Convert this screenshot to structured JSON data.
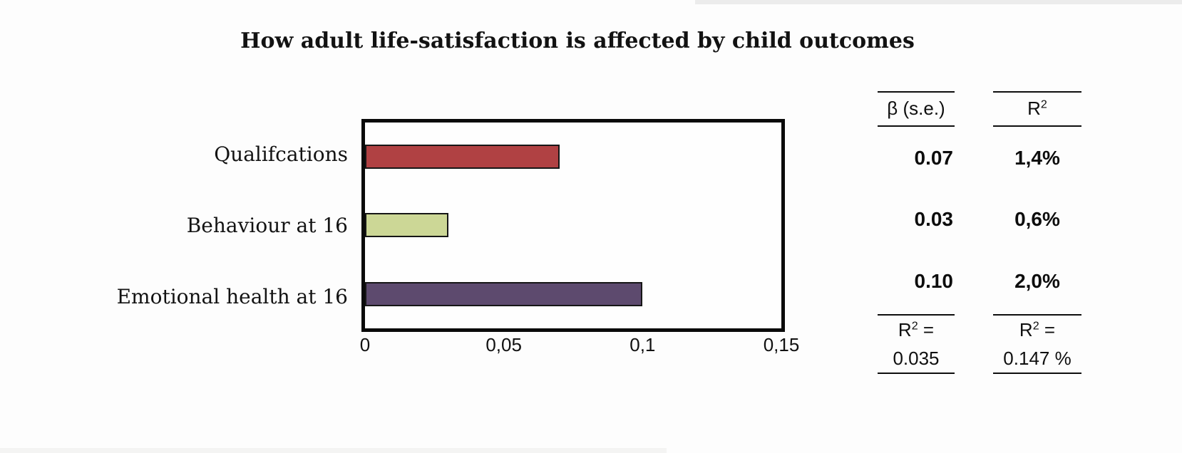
{
  "title": "How adult life-satisfaction is affected by child outcomes",
  "chart_data": {
    "type": "bar",
    "orientation": "horizontal",
    "title": "How adult life-satisfaction is affected by child outcomes",
    "categories": [
      "Qualifcations",
      "Behaviour at 16",
      "Emotional health at 16"
    ],
    "values": [
      0.07,
      0.03,
      0.1
    ],
    "xlim": [
      0,
      0.15
    ],
    "x_ticks": [
      {
        "value": 0,
        "label": "0"
      },
      {
        "value": 0.05,
        "label": "0,05"
      },
      {
        "value": 0.1,
        "label": "0,1"
      },
      {
        "value": 0.15,
        "label": "0,15"
      }
    ],
    "bar_colors": [
      "#b04143",
      "#ccd796",
      "#5d4a6e"
    ],
    "bar_border_color": "#161616",
    "plot_border_color": "#0a0a0a",
    "grid": false,
    "legend": false
  },
  "stats_table": {
    "col1": {
      "header": "β (s.e.)",
      "values": [
        "0.07",
        "0.03",
        "0.10"
      ],
      "footer": {
        "base": "R",
        "sup": "2",
        "suffix": " =",
        "value": "0.035"
      }
    },
    "col2": {
      "header_base": "R",
      "header_sup": "2",
      "values": [
        "1,4%",
        "0,6%",
        "2,0%"
      ],
      "footer": {
        "base": "R",
        "sup": "2",
        "suffix": " =",
        "value": "0.147 %"
      }
    }
  }
}
